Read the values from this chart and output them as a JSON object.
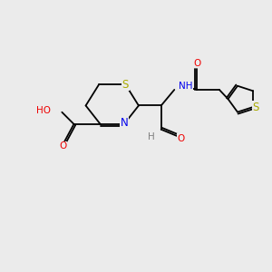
{
  "bg_color": "#ebebeb",
  "bond_color": "#000000",
  "atom_colors": {
    "S": "#aaaa00",
    "N": "#0000ee",
    "O": "#ee0000",
    "C": "#000000",
    "H": "#808080"
  },
  "font_size": 7.5,
  "fig_size": [
    3.0,
    3.0
  ],
  "dpi": 100
}
